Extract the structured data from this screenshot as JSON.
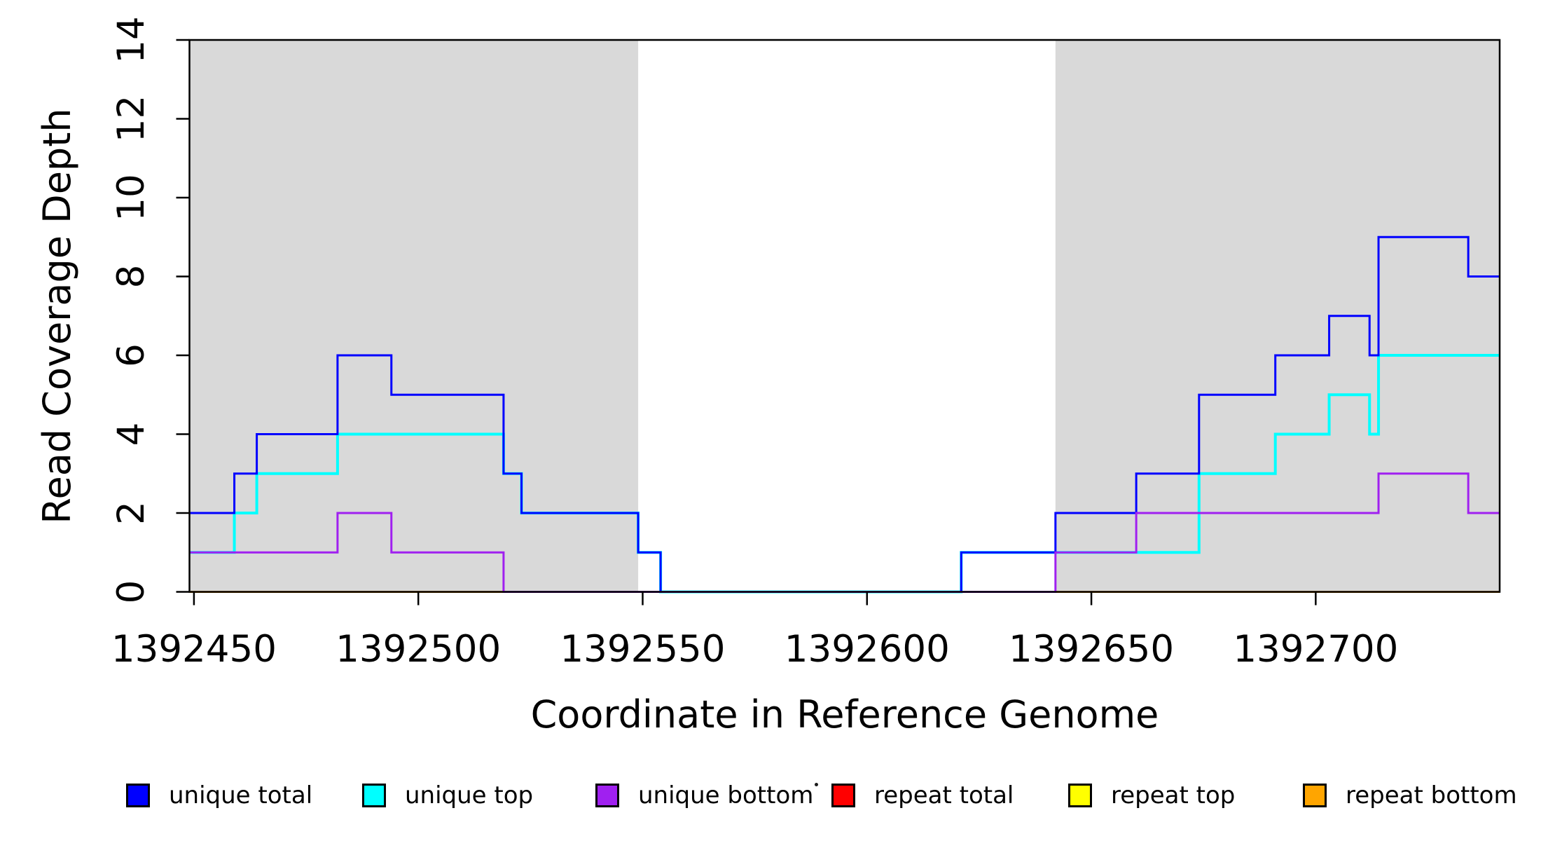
{
  "chart_data": {
    "type": "line",
    "subtype": "step-post",
    "title": "",
    "xlabel": "Coordinate in Reference Genome",
    "ylabel": "Read Coverage Depth",
    "xlim": [
      1392449,
      1392741
    ],
    "ylim": [
      0,
      14
    ],
    "x_ticks": [
      1392450,
      1392500,
      1392550,
      1392600,
      1392650,
      1392700
    ],
    "y_ticks": [
      0,
      2,
      4,
      6,
      8,
      10,
      12,
      14
    ],
    "grid": false,
    "legend_position": "bottom",
    "plot_background": "#ffffff",
    "shaded_regions": [
      {
        "x0": 1392449,
        "x1": 1392549,
        "color": "#D9D9D9"
      },
      {
        "x0": 1392642,
        "x1": 1392741,
        "color": "#D9D9D9"
      }
    ],
    "series": [
      {
        "name": "repeat total",
        "color": "#FF0000",
        "stroke_width": 3,
        "steps": [
          [
            1392449,
            0
          ]
        ],
        "xend": 1392741
      },
      {
        "name": "repeat top",
        "color": "#FFFF00",
        "stroke_width": 3,
        "steps": [
          [
            1392449,
            0
          ]
        ],
        "xend": 1392741
      },
      {
        "name": "repeat bottom",
        "color": "#FFA500",
        "stroke_width": 3,
        "steps": [
          [
            1392449,
            0
          ]
        ],
        "xend": 1392741
      },
      {
        "name": "unique top",
        "color": "#00FFFF",
        "stroke_width": 4,
        "steps": [
          [
            1392449,
            1
          ],
          [
            1392459,
            2
          ],
          [
            1392464,
            3
          ],
          [
            1392482,
            4
          ],
          [
            1392519,
            3
          ],
          [
            1392523,
            2
          ],
          [
            1392549,
            1
          ],
          [
            1392554,
            0
          ],
          [
            1392621,
            1
          ],
          [
            1392674,
            3
          ],
          [
            1392691,
            4
          ],
          [
            1392703,
            5
          ],
          [
            1392712,
            4
          ],
          [
            1392714,
            6
          ]
        ],
        "xend": 1392741
      },
      {
        "name": "unique total",
        "color": "#0000FF",
        "stroke_width": 3,
        "steps": [
          [
            1392449,
            2
          ],
          [
            1392459,
            3
          ],
          [
            1392464,
            4
          ],
          [
            1392482,
            6
          ],
          [
            1392494,
            5
          ],
          [
            1392519,
            3
          ],
          [
            1392523,
            2
          ],
          [
            1392549,
            1
          ],
          [
            1392554,
            0
          ],
          [
            1392621,
            1
          ],
          [
            1392642,
            2
          ],
          [
            1392660,
            3
          ],
          [
            1392674,
            5
          ],
          [
            1392691,
            6
          ],
          [
            1392703,
            7
          ],
          [
            1392712,
            6
          ],
          [
            1392714,
            9
          ],
          [
            1392734,
            8
          ]
        ],
        "xend": 1392741
      },
      {
        "name": "unique bottom",
        "color": "#A020F0",
        "stroke_width": 3,
        "steps": [
          [
            1392449,
            1
          ],
          [
            1392482,
            2
          ],
          [
            1392494,
            1
          ],
          [
            1392519,
            0
          ],
          [
            1392642,
            1
          ],
          [
            1392660,
            2
          ],
          [
            1392714,
            3
          ],
          [
            1392734,
            2
          ]
        ],
        "xend": 1392741
      }
    ],
    "axis_color": "#000000"
  },
  "legend": {
    "items": [
      {
        "label": "unique total",
        "color": "#0000FF"
      },
      {
        "label": "unique top",
        "color": "#00FFFF"
      },
      {
        "label": "unique bottom",
        "color": "#A020F0"
      },
      {
        "label": "repeat total",
        "color": "#FF0000"
      },
      {
        "label": "repeat top",
        "color": "#FFFF00"
      },
      {
        "label": "repeat bottom",
        "color": "#FFA500"
      }
    ]
  }
}
